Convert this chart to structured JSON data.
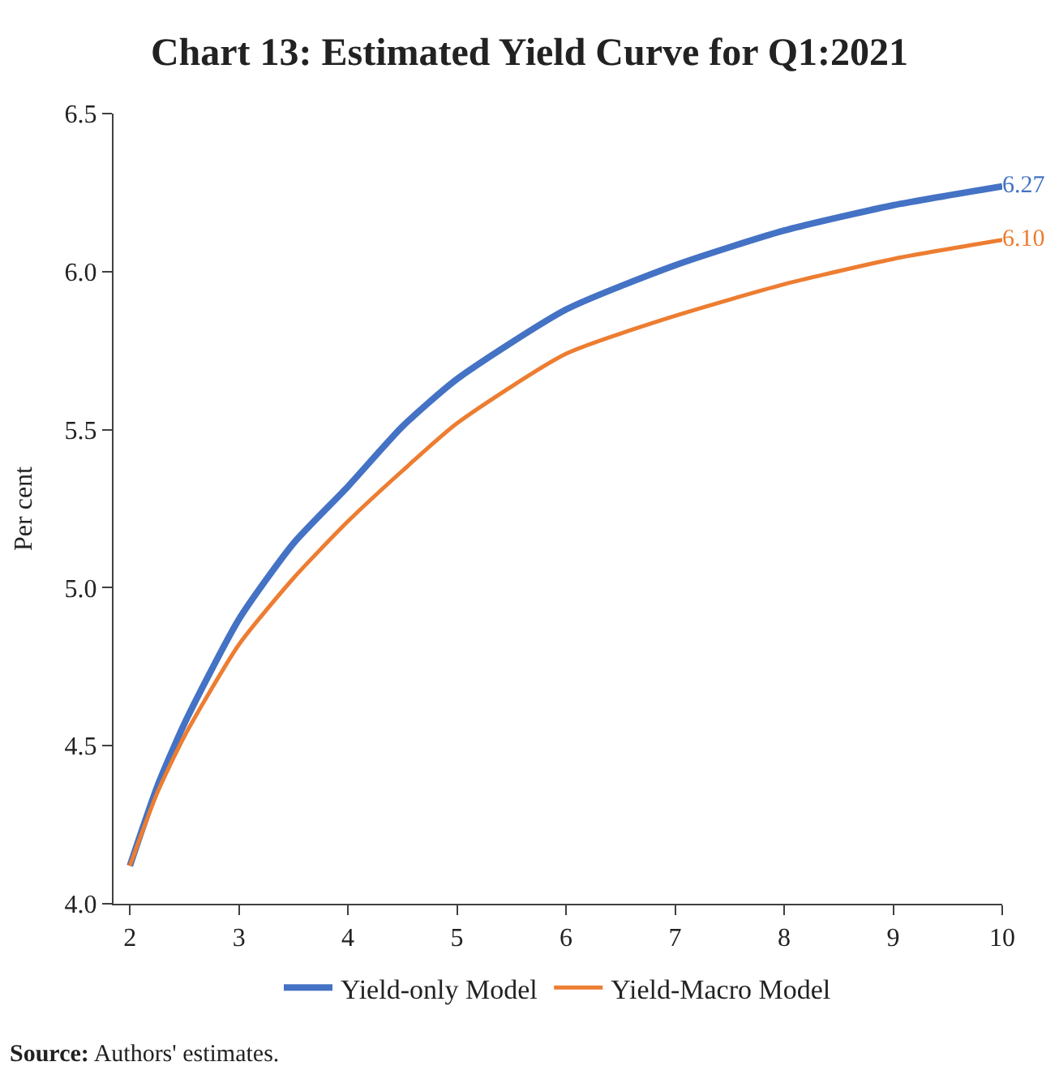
{
  "chart_data": {
    "type": "line",
    "title": "Chart 13: Estimated Yield Curve for Q1:2021",
    "ylabel": "Per cent",
    "x": [
      2,
      2.25,
      2.5,
      3,
      3.5,
      4,
      4.5,
      5,
      6,
      7,
      8,
      9,
      10
    ],
    "series": [
      {
        "name": "Yield-only Model",
        "color": "#4472c4",
        "values": [
          4.12,
          4.37,
          4.57,
          4.9,
          5.14,
          5.32,
          5.51,
          5.66,
          5.88,
          6.02,
          6.13,
          6.21,
          6.27
        ],
        "value_labels": [
          null,
          null,
          null,
          null,
          null,
          null,
          null,
          null,
          null,
          null,
          null,
          null,
          "6.27"
        ]
      },
      {
        "name": "Yield-Macro Model",
        "color": "#ed7d31",
        "values": [
          4.12,
          4.35,
          4.53,
          4.82,
          5.03,
          5.21,
          5.37,
          5.52,
          5.74,
          5.86,
          5.96,
          6.04,
          6.1
        ],
        "value_labels": [
          null,
          null,
          null,
          null,
          null,
          null,
          null,
          null,
          null,
          null,
          null,
          null,
          "6.10"
        ]
      }
    ],
    "xlim": [
      1.85,
      10
    ],
    "xticks": [
      2,
      3,
      4,
      5,
      6,
      7,
      8,
      9,
      10
    ],
    "ylim": [
      4.0,
      6.5
    ],
    "yticks": [
      {
        "value": 4.0,
        "label": "4.0"
      },
      {
        "value": 4.5,
        "label": "4.5"
      },
      {
        "value": 5.0,
        "label": "5.0"
      },
      {
        "value": 5.5,
        "label": "5.5"
      },
      {
        "value": 6.0,
        "label": "6.0"
      },
      {
        "value": 6.5,
        "label": "6.5"
      }
    ],
    "legend": "bottom",
    "marker": "none",
    "line_style": "solid",
    "annotations": [
      "Source: Authors' estimates."
    ]
  }
}
